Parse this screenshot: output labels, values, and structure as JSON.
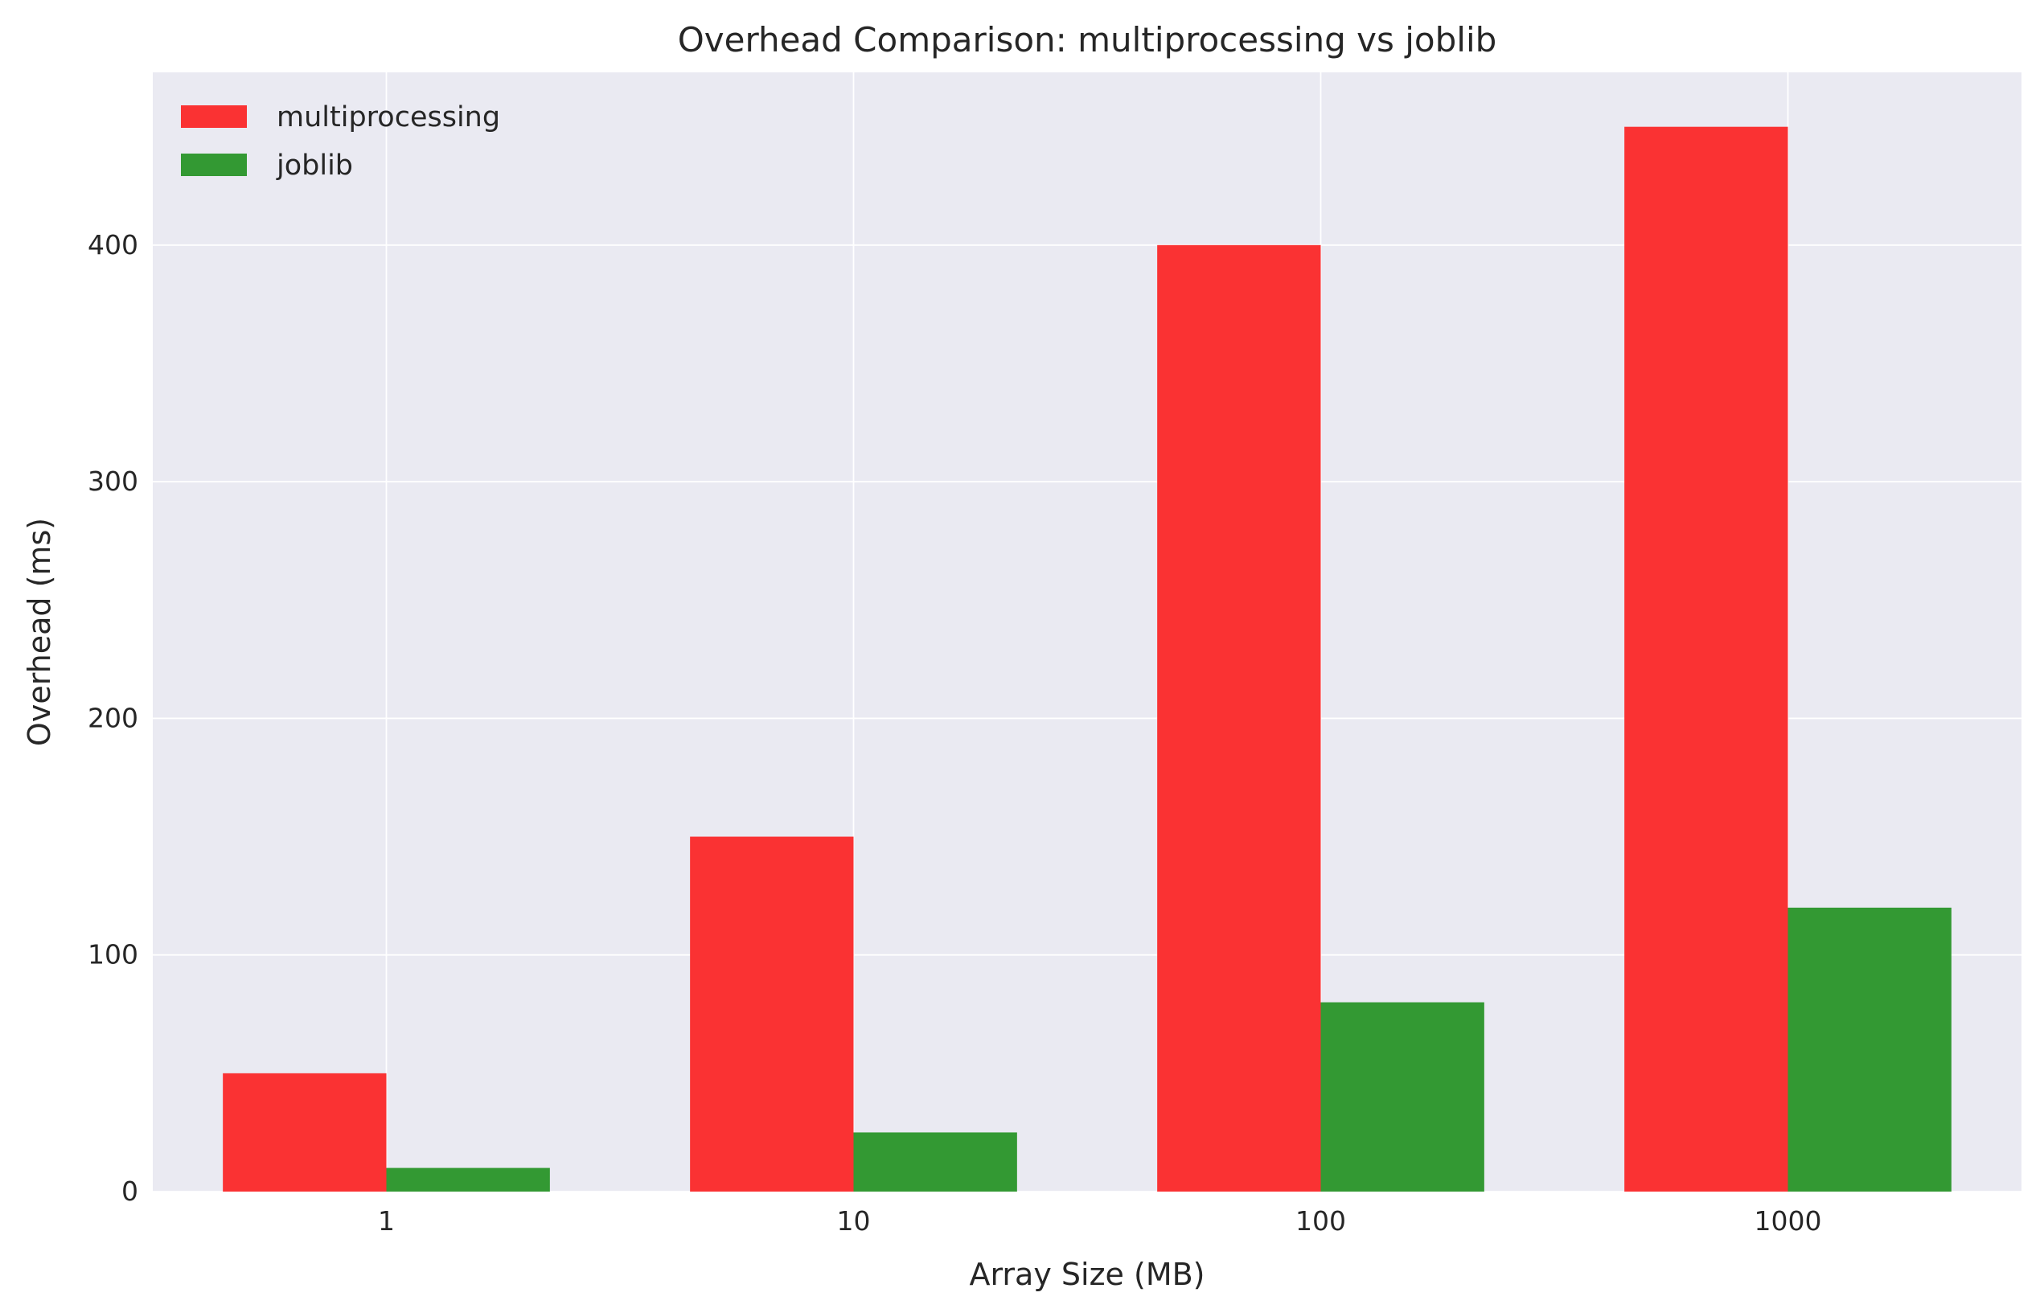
{
  "chart_data": {
    "type": "bar",
    "title": "Overhead Comparison: multiprocessing vs joblib",
    "xlabel": "Array Size (MB)",
    "ylabel": "Overhead (ms)",
    "categories": [
      "1",
      "10",
      "100",
      "1000"
    ],
    "series": [
      {
        "name": "multiprocessing",
        "values": [
          50,
          150,
          400,
          450
        ],
        "color": "#fa3233"
      },
      {
        "name": "joblib",
        "values": [
          10,
          25,
          80,
          120
        ],
        "color": "#339933"
      }
    ],
    "ylim": [
      0,
      473
    ],
    "yticks": [
      "0",
      "100",
      "200",
      "300",
      "400"
    ],
    "grid": true,
    "legend_position": "top-left",
    "background": "#eaeaf2"
  }
}
